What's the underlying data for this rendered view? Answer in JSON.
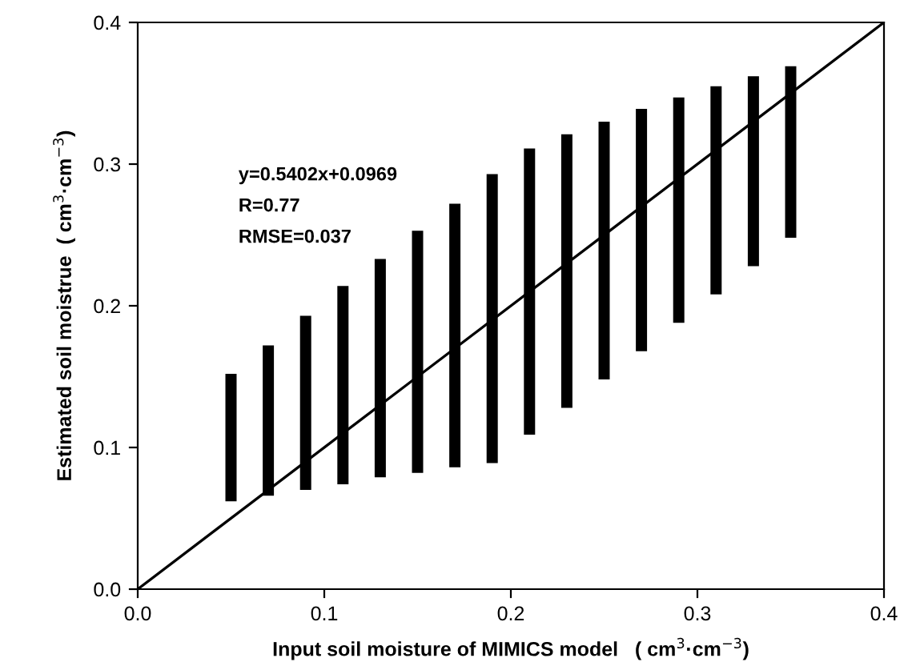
{
  "chart_data": {
    "type": "bar",
    "xlabel": "Input soil moisture of MIMICS model   ( cm$^{3}$·cm$^{−3}$)",
    "ylabel": "Estimated soil moistrue  ( cm$^{3}$·cm$^{−3}$)",
    "x": [
      0.05,
      0.07,
      0.09,
      0.11,
      0.13,
      0.15,
      0.17,
      0.19,
      0.21,
      0.23,
      0.25,
      0.27,
      0.29,
      0.31,
      0.33,
      0.35
    ],
    "base": [
      0.062,
      0.066,
      0.07,
      0.074,
      0.079,
      0.082,
      0.086,
      0.089,
      0.109,
      0.128,
      0.148,
      0.168,
      0.188,
      0.208,
      0.228,
      0.248
    ],
    "values": [
      0.09,
      0.106,
      0.123,
      0.14,
      0.154,
      0.171,
      0.186,
      0.204,
      0.202,
      0.193,
      0.182,
      0.171,
      0.159,
      0.147,
      0.134,
      0.121
    ],
    "color": "#000000",
    "series": [
      {
        "type": "line",
        "color": "#000000",
        "x": [
          0,
          0.4
        ],
        "values": [
          0,
          0.4
        ]
      }
    ],
    "annotations": [
      "y=0.5402x+0.0969",
      "R=0.77",
      "RMSE=0.037"
    ],
    "xlim": [
      0,
      0.4
    ],
    "ylim": [
      0,
      0.4
    ],
    "xticks": [
      {
        "value": 0,
        "label": "0.0"
      },
      0.1,
      0.2,
      0.3,
      0.4
    ],
    "yticks": [
      {
        "value": 0,
        "label": "0.0"
      },
      0.1,
      0.2,
      0.3,
      0.4
    ],
    "grid": false,
    "legend": false
  }
}
